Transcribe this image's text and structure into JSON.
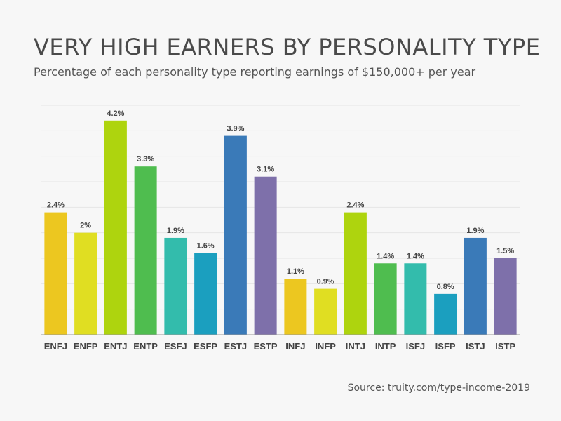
{
  "header": {
    "title": "VERY HIGH EARNERS BY PERSONALITY TYPE",
    "subtitle": "Percentage of each personality type reporting earnings of $150,000+ per year"
  },
  "footer": {
    "source": "Source: truity.com/type-income-2019"
  },
  "chart_data": {
    "type": "bar",
    "title": "VERY HIGH EARNERS BY PERSONALITY TYPE",
    "subtitle": "Percentage of each personality type reporting earnings of $150,000+ per year",
    "xlabel": "",
    "ylabel": "",
    "ylim": [
      0,
      4.5
    ],
    "grid": true,
    "categories": [
      "ENFJ",
      "ENFP",
      "ENTJ",
      "ENTP",
      "ESFJ",
      "ESFP",
      "ESTJ",
      "ESTP",
      "INFJ",
      "INFP",
      "INTJ",
      "INTP",
      "ISFJ",
      "ISFP",
      "ISTJ",
      "ISTP"
    ],
    "values": [
      2.4,
      2.0,
      4.2,
      3.3,
      1.9,
      1.6,
      3.9,
      3.1,
      1.1,
      0.9,
      2.4,
      1.4,
      1.4,
      0.8,
      1.9,
      1.5
    ],
    "data_labels": [
      "2.4%",
      "2%",
      "4.2%",
      "3.3%",
      "1.9%",
      "1.6%",
      "3.9%",
      "3.1%",
      "1.1%",
      "0.9%",
      "2.4%",
      "1.4%",
      "1.4%",
      "0.8%",
      "1.9%",
      "1.5%"
    ],
    "colors": [
      "#ecc720",
      "#e0de22",
      "#aed40e",
      "#4fbd4f",
      "#33bcac",
      "#1b9fbf",
      "#3a7ab8",
      "#7e70aa",
      "#ecc720",
      "#e0de22",
      "#aed40e",
      "#4fbd4f",
      "#33bcac",
      "#1b9fbf",
      "#3a7ab8",
      "#7e70aa"
    ]
  }
}
